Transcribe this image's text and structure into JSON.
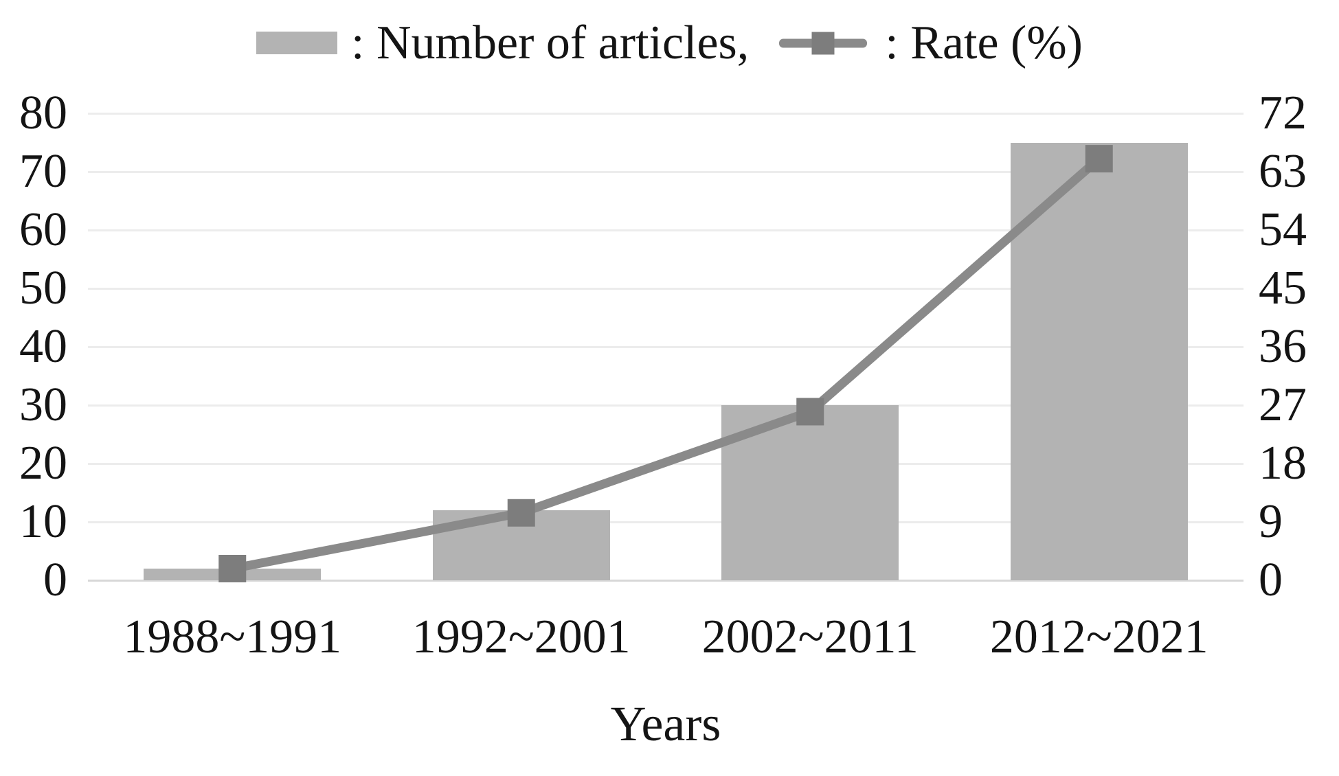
{
  "legend": {
    "articles_label": ": Number of articles,",
    "rate_label": ": Rate (%)"
  },
  "chart_data": {
    "type": "bar",
    "subtype": "combo bar + line, dual axis",
    "categories": [
      "1988~1991",
      "1992~2001",
      "2002~2011",
      "2012~2021"
    ],
    "series": [
      {
        "name": "Number of articles",
        "type": "bar",
        "axis": "left",
        "values": [
          2,
          12,
          30,
          75
        ]
      },
      {
        "name": "Rate (%)",
        "type": "line",
        "axis": "right",
        "values": [
          1.8,
          10.4,
          26,
          65
        ]
      }
    ],
    "left_axis": {
      "min": 0,
      "max": 80,
      "step": 10,
      "ticks": [
        80,
        70,
        60,
        50,
        40,
        30,
        20,
        10,
        0
      ]
    },
    "right_axis": {
      "min": 0,
      "max": 72,
      "step": 9,
      "ticks": [
        72,
        63,
        54,
        45,
        36,
        27,
        18,
        9,
        0
      ]
    },
    "xlabel": "Years",
    "grid": true,
    "legend_position": "top center",
    "colors": {
      "bar": "#b3b3b3",
      "line": "#8a8a8a",
      "marker": "#7d7d7d",
      "gridline": "#ececec",
      "axis_line": "#d8d8d8",
      "text": "#141414"
    }
  }
}
